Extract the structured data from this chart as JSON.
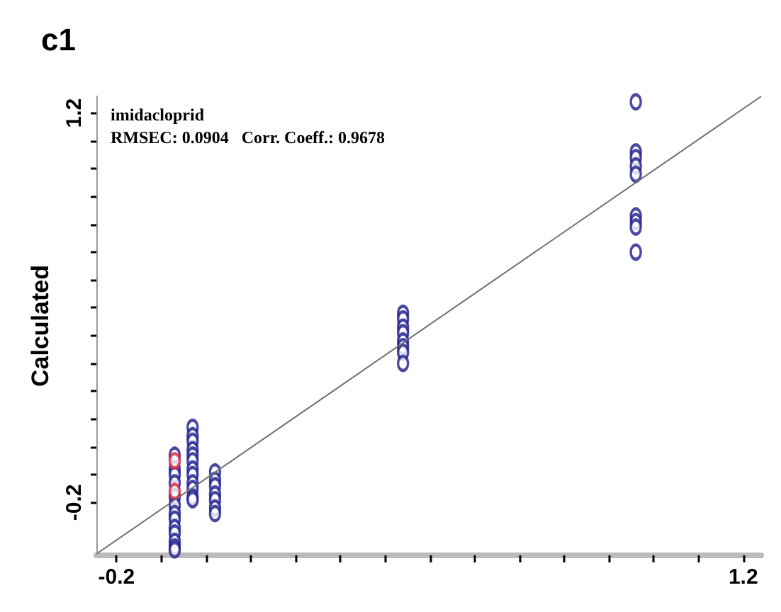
{
  "chart_data": {
    "type": "scatter",
    "title": "c1",
    "ylabel": "Calculated",
    "marker": "circle",
    "grid": false,
    "annotations": [
      "imidacloprid",
      "RMSEC: 0.0904   Corr. Coeff.: 0.9678"
    ],
    "xlim": [
      -0.245,
      1.24
    ],
    "ylim": [
      -0.39,
      1.26
    ],
    "xticks": [
      -0.2,
      {
        "value": -0.1,
        "label": null
      },
      {
        "value": 0,
        "label": null
      },
      {
        "value": 0.1,
        "label": null
      },
      {
        "value": 0.2,
        "label": null
      },
      {
        "value": 0.3,
        "label": null
      },
      {
        "value": 0.4,
        "label": null
      },
      {
        "value": 0.5,
        "label": null
      },
      {
        "value": 0.6,
        "label": null
      },
      {
        "value": 0.7,
        "label": null
      },
      {
        "value": 0.8,
        "label": null
      },
      {
        "value": 0.9,
        "label": null
      },
      {
        "value": 1.0,
        "label": null
      },
      {
        "value": 1.1,
        "label": null
      },
      1.2
    ],
    "yticks": [
      -0.2,
      {
        "value": -0.1,
        "label": null
      },
      {
        "value": 0,
        "label": null
      },
      {
        "value": 0.1,
        "label": null
      },
      {
        "value": 0.2,
        "label": null
      },
      {
        "value": 0.3,
        "label": null
      },
      {
        "value": 0.4,
        "label": null
      },
      {
        "value": 0.5,
        "label": null
      },
      {
        "value": 0.6,
        "label": null
      },
      {
        "value": 0.7,
        "label": null
      },
      {
        "value": 0.8,
        "label": null
      },
      {
        "value": 0.9,
        "label": null
      },
      {
        "value": 1.0,
        "label": null
      },
      {
        "value": 1.1,
        "label": null
      },
      1.2
    ],
    "series": [
      {
        "color": "#1c1c8c",
        "x": [
          -0.07,
          -0.07,
          -0.07,
          -0.07,
          -0.07,
          -0.07,
          -0.07,
          -0.07,
          -0.07,
          -0.07,
          -0.07,
          -0.07,
          -0.07,
          -0.03,
          -0.03,
          -0.03,
          -0.03,
          -0.03,
          -0.03,
          -0.03,
          -0.03,
          -0.03,
          -0.03,
          -0.03,
          -0.03,
          0.02,
          0.02,
          0.02,
          0.02,
          0.02,
          0.02,
          0.02,
          0.44,
          0.44,
          0.44,
          0.44,
          0.44,
          0.44,
          0.44,
          0.44,
          0.96,
          0.96,
          0.96,
          0.96,
          0.96,
          0.96,
          0.96,
          0.96,
          0.96
        ],
        "values": [
          -0.03,
          -0.08,
          -0.1,
          -0.13,
          -0.18,
          -0.21,
          -0.24,
          -0.26,
          -0.29,
          -0.31,
          -0.34,
          -0.36,
          -0.37,
          0.07,
          0.04,
          0.02,
          -0.01,
          -0.03,
          -0.05,
          -0.08,
          -0.1,
          -0.13,
          -0.15,
          -0.18,
          -0.19,
          -0.09,
          -0.12,
          -0.14,
          -0.17,
          -0.19,
          -0.22,
          -0.24,
          0.48,
          0.46,
          0.43,
          0.41,
          0.38,
          0.36,
          0.34,
          0.3,
          1.24,
          1.06,
          1.04,
          1.01,
          0.98,
          0.83,
          0.81,
          0.79,
          0.7
        ]
      },
      {
        "color": "#e0203c",
        "x": [
          -0.07,
          -0.07
        ],
        "values": [
          -0.05,
          -0.16
        ]
      },
      {
        "type": "line",
        "color": "#707070",
        "marker": "none",
        "x": [
          -0.245,
          1.24
        ],
        "values": [
          -0.385,
          1.26
        ]
      }
    ]
  }
}
